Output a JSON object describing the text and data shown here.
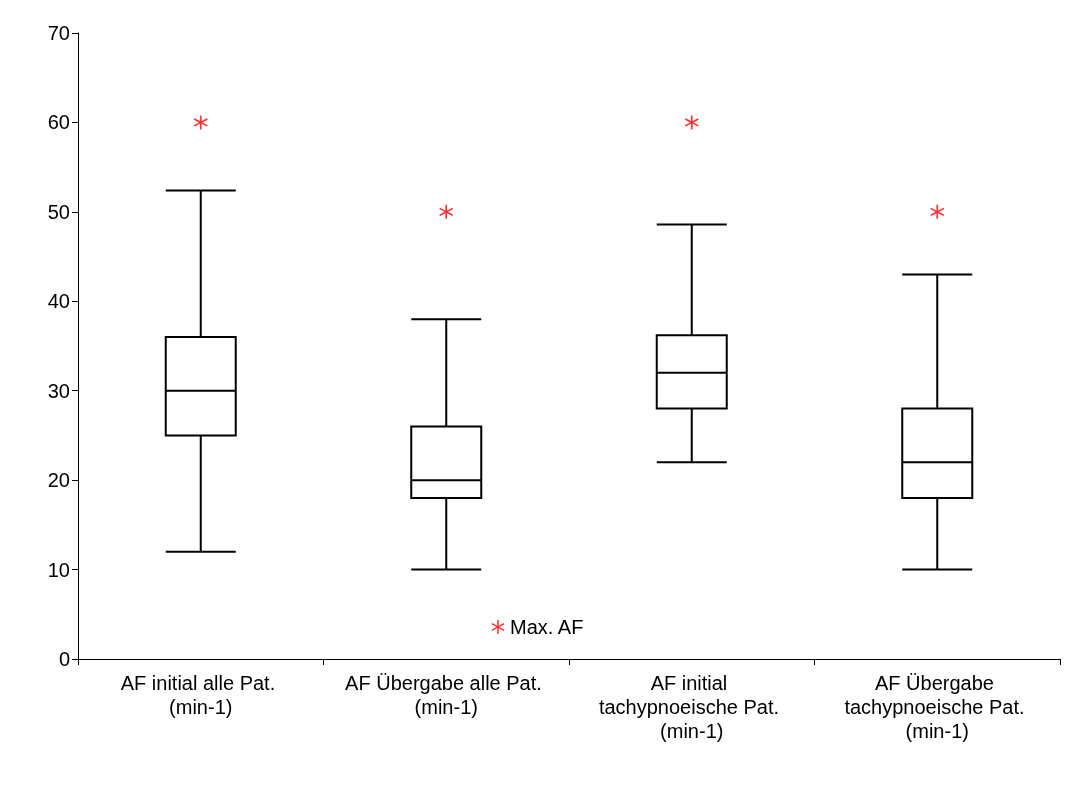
{
  "chart_data": {
    "type": "box",
    "categories": [
      "AF initial alle Pat. (min-1)",
      "AF Übergabe alle Pat. (min-1)",
      "AF initial tachypnoeische Pat. (min-1)",
      "AF Übergabe tachypnoeische Pat. (min-1)"
    ],
    "series": [
      {
        "color": "#000000",
        "boxes": [
          {
            "low": 12,
            "q1": 25,
            "median": 30,
            "q3": 36,
            "high": 52.4
          },
          {
            "low": 10,
            "q1": 18,
            "median": 20,
            "q3": 26,
            "high": 38
          },
          {
            "low": 22,
            "q1": 28,
            "median": 32,
            "q3": 36.2,
            "high": 48.6
          },
          {
            "low": 10,
            "q1": 18,
            "median": 22,
            "q3": 28,
            "high": 43
          }
        ]
      },
      {
        "type": "scatter",
        "name": "Max. AF",
        "color": "#ff0000",
        "marker": "cross",
        "x": [
          "AF initial alle Pat. (min-1)",
          "AF Übergabe alle Pat. (min-1)",
          "AF initial tachypnoeische Pat. (min-1)",
          "AF Übergabe tachypnoeische Pat. (min-1)"
        ],
        "values": [
          60,
          50,
          60,
          50
        ]
      }
    ],
    "ylim": [
      0,
      70
    ],
    "yticks": [
      0,
      10,
      20,
      30,
      40,
      50,
      60,
      70
    ],
    "grid": false,
    "legend": "bottom"
  }
}
